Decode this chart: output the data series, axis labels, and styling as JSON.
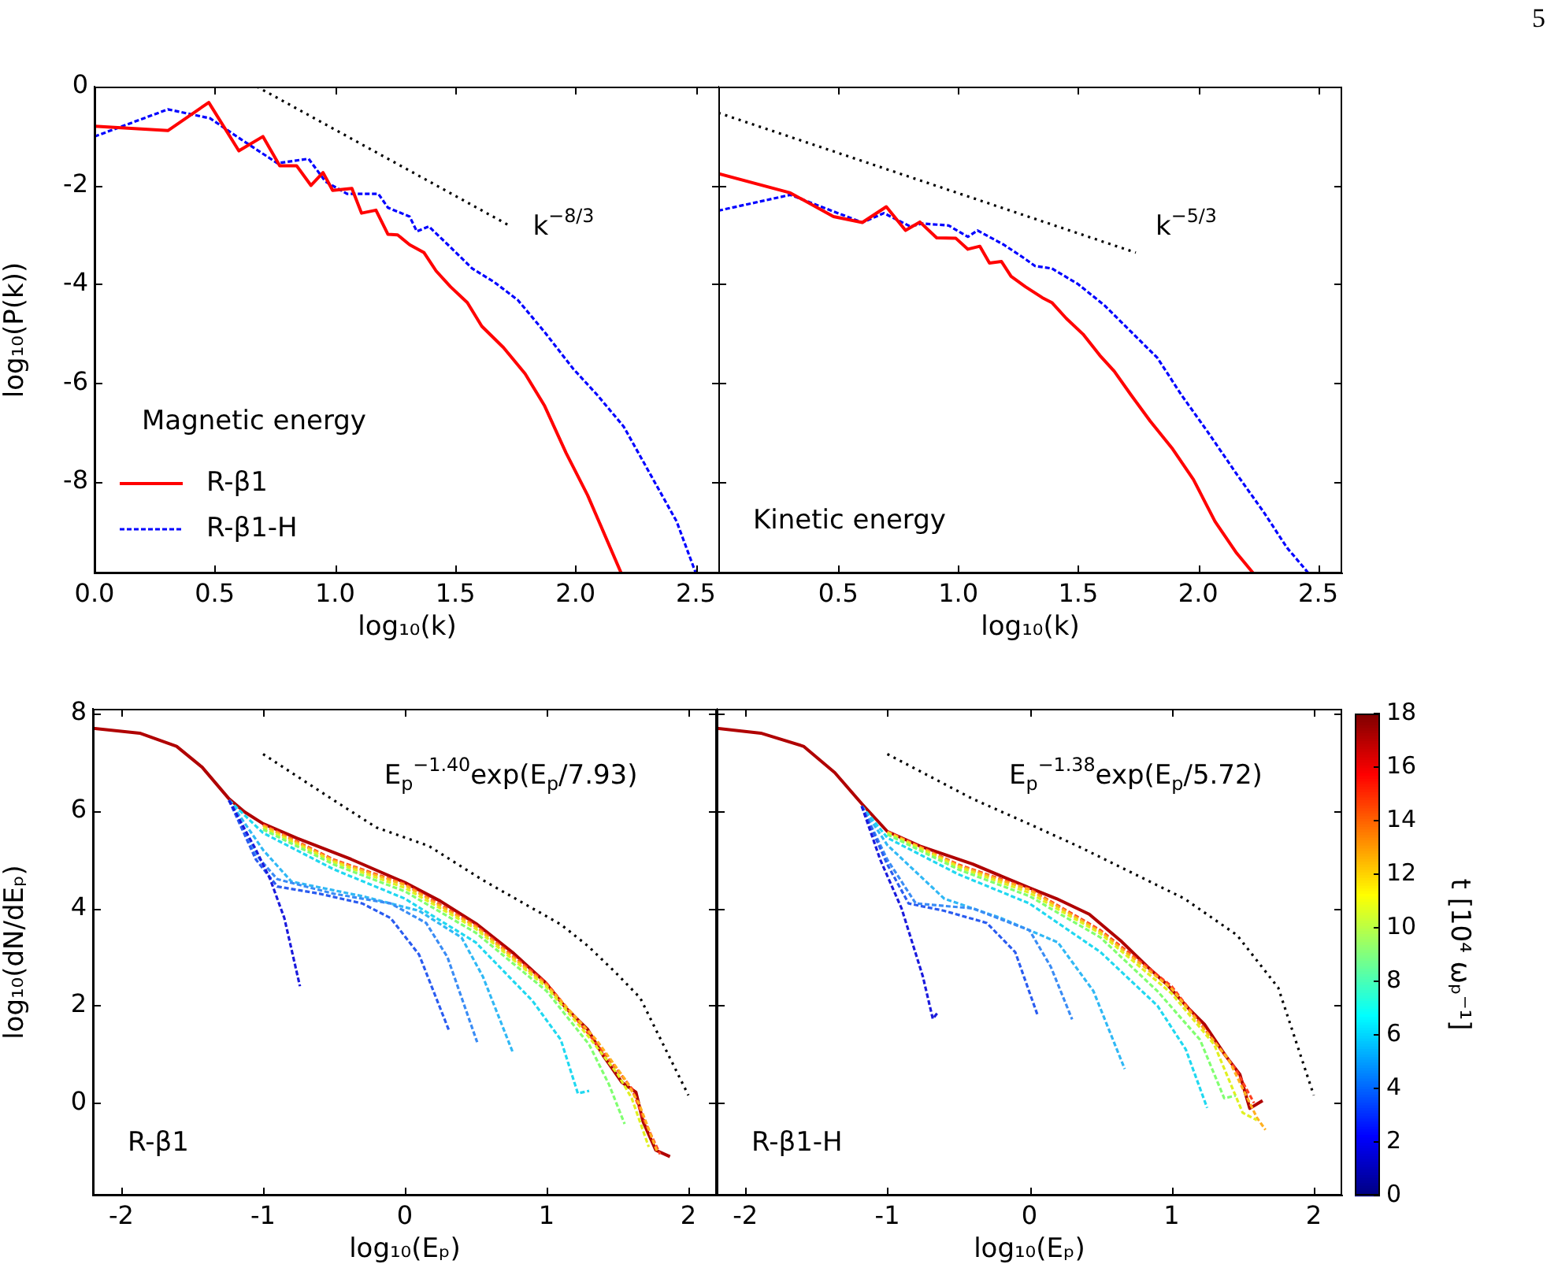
{
  "chart_data": [
    {
      "type": "line",
      "xlabel": "log₁₀(k)",
      "ylabel": "log₁₀(P(k))",
      "xlim": [
        0,
        2.6
      ],
      "ylim": [
        -9.85,
        0
      ],
      "xticks": [
        {
          "value": 0,
          "label": "0.0"
        },
        {
          "value": 0.5,
          "label": "0.5"
        },
        {
          "value": 1,
          "label": "1.0"
        },
        {
          "value": 1.5,
          "label": "1.5"
        },
        {
          "value": 2,
          "label": "2.0"
        },
        {
          "value": 2.5,
          "label": "2.5"
        }
      ],
      "yticks": [
        0,
        -2,
        -4,
        -6,
        -8
      ],
      "grid": false,
      "marker": "none",
      "legend": "bottom left",
      "legend_title": "Magnetic energy",
      "annotations": [
        "k$^{−8/3}$"
      ],
      "series": [
        {
          "name": "R-β1",
          "color": "#ff0000",
          "line_style": "solid",
          "x": [
            0,
            0.305,
            0.475,
            0.6,
            0.7,
            0.77,
            0.84,
            0.9,
            0.95,
            0.99,
            1.07,
            1.11,
            1.17,
            1.22,
            1.26,
            1.31,
            1.37,
            1.42,
            1.48,
            1.55,
            1.61,
            1.7,
            1.79,
            1.87,
            1.96,
            2.05,
            2.19
          ],
          "values": [
            -0.8,
            -0.89,
            -0.32,
            -1.3,
            -1.01,
            -1.6,
            -1.6,
            -2.0,
            -1.74,
            -2.1,
            -2.06,
            -2.56,
            -2.5,
            -2.99,
            -3.0,
            -3.2,
            -3.36,
            -3.73,
            -4.05,
            -4.37,
            -4.85,
            -5.28,
            -5.81,
            -6.45,
            -7.41,
            -8.27,
            -9.85
          ]
        },
        {
          "name": "R-β1-H",
          "color": "#0000ff",
          "line_style": "dashed",
          "x": [
            0,
            0.305,
            0.48,
            0.61,
            0.76,
            0.89,
            0.96,
            1.05,
            1.18,
            1.22,
            1.31,
            1.34,
            1.39,
            1.48,
            1.57,
            1.66,
            1.76,
            1.87,
            1.99,
            2.09,
            2.2,
            2.31,
            2.42,
            2.5
          ],
          "values": [
            -1.01,
            -0.46,
            -0.64,
            -1.07,
            -1.55,
            -1.46,
            -1.92,
            -2.17,
            -2.17,
            -2.45,
            -2.63,
            -2.93,
            -2.83,
            -3.25,
            -3.68,
            -3.95,
            -4.32,
            -4.96,
            -5.71,
            -6.24,
            -6.88,
            -7.84,
            -8.8,
            -9.85
          ]
        },
        {
          "color": "#000000",
          "line_style": "dotted",
          "x": [
            0.675,
            1.72
          ],
          "values": [
            0,
            -2.8
          ]
        }
      ]
    },
    {
      "type": "line",
      "xlabel": "log₁₀(k)",
      "xlim": [
        0,
        2.6
      ],
      "ylim": [
        -9.85,
        0
      ],
      "xticks": [
        {
          "value": 0.5,
          "label": "0.5"
        },
        {
          "value": 1,
          "label": "1.0"
        },
        {
          "value": 1.5,
          "label": "1.5"
        },
        {
          "value": 2,
          "label": "2.0"
        },
        {
          "value": 2.5,
          "label": "2.5"
        }
      ],
      "yticks": [
        0,
        -2,
        -4,
        -6,
        -8
      ],
      "tick_labels": "x",
      "grid": false,
      "marker": "none",
      "annotations": [
        "Kinetic energy",
        "k$^{−5/3}$",
        "5"
      ],
      "series": [
        {
          "color": "#ff0000",
          "line_style": "solid",
          "x": [
            0,
            0.3,
            0.48,
            0.6,
            0.7,
            0.78,
            0.84,
            0.91,
            0.99,
            1.04,
            1.09,
            1.13,
            1.18,
            1.22,
            1.28,
            1.35,
            1.39,
            1.45,
            1.52,
            1.59,
            1.65,
            1.72,
            1.8,
            1.89,
            1.98,
            2.07,
            2.16,
            2.23
          ],
          "values": [
            -1.76,
            -2.15,
            -2.63,
            -2.75,
            -2.43,
            -2.91,
            -2.74,
            -3.06,
            -3.07,
            -3.29,
            -3.23,
            -3.57,
            -3.54,
            -3.84,
            -4.05,
            -4.27,
            -4.37,
            -4.69,
            -5.01,
            -5.44,
            -5.76,
            -6.24,
            -6.77,
            -7.31,
            -7.95,
            -8.8,
            -9.44,
            -9.85
          ]
        },
        {
          "color": "#0000ff",
          "line_style": "dashed",
          "x": [
            0,
            0.3,
            0.6,
            0.69,
            0.8,
            0.85,
            0.96,
            1.04,
            1.08,
            1.19,
            1.28,
            1.32,
            1.39,
            1.5,
            1.61,
            1.72,
            1.83,
            1.93,
            2.04,
            2.16,
            2.27,
            2.37,
            2.46
          ],
          "values": [
            -2.51,
            -2.19,
            -2.75,
            -2.56,
            -2.83,
            -2.77,
            -2.81,
            -3.04,
            -2.91,
            -3.2,
            -3.49,
            -3.63,
            -3.68,
            -4.0,
            -4.43,
            -4.96,
            -5.49,
            -6.24,
            -6.99,
            -7.84,
            -8.59,
            -9.33,
            -9.85
          ]
        },
        {
          "color": "#000000",
          "line_style": "dotted",
          "x": [
            0,
            1.74
          ],
          "values": [
            -0.53,
            -3.36
          ]
        }
      ]
    },
    {
      "type": "line",
      "xlabel": "log₁₀(Eₚ)",
      "ylabel": "log₁₀(dN/dEₚ)",
      "xlim": [
        -2.2,
        2.2
      ],
      "ylim": [
        -1.9,
        8.1
      ],
      "xticks": [
        -2,
        -1,
        0,
        1,
        2
      ],
      "yticks": [
        0,
        2,
        4,
        6,
        8
      ],
      "grid": false,
      "marker": "none",
      "annotations": [
        "R-β1",
        "E$_{p}$$^{−1.40}$exp(E$_{p}$/7.93)"
      ],
      "series": [
        {
          "color": "#1a1adc",
          "line_style": "dashed",
          "x": [
            -1.24,
            -1.05,
            -0.95,
            -0.85,
            -0.74
          ],
          "values": [
            6.22,
            5.2,
            4.6,
            3.8,
            2.4
          ]
        },
        {
          "color": "#2a5cf0",
          "line_style": "dashed",
          "x": [
            -1.24,
            -1.05,
            -0.9,
            -0.6,
            -0.3,
            -0.1,
            0.1,
            0.31
          ],
          "values": [
            6.22,
            5.0,
            4.45,
            4.3,
            4.1,
            3.8,
            3.05,
            1.5
          ]
        },
        {
          "color": "#3a8cf5",
          "line_style": "dashed",
          "x": [
            -1.24,
            -1.05,
            -0.9,
            -0.5,
            -0.1,
            0.15,
            0.3,
            0.51
          ],
          "values": [
            6.22,
            5.1,
            4.6,
            4.3,
            4.1,
            3.7,
            3.0,
            1.25
          ]
        },
        {
          "color": "#30b8f5",
          "line_style": "dashed",
          "x": [
            -1.24,
            -1.0,
            -0.8,
            -0.3,
            0.1,
            0.4,
            0.55,
            0.76
          ],
          "values": [
            6.22,
            5.2,
            4.55,
            4.25,
            3.95,
            3.4,
            2.6,
            1.05
          ]
        },
        {
          "color": "#20d8f0",
          "line_style": "dashed",
          "x": [
            -1.24,
            -1.0,
            -0.5,
            0,
            0.5,
            0.9,
            1.1,
            1.22,
            1.3
          ],
          "values": [
            6.22,
            5.55,
            4.8,
            4.2,
            3.3,
            2.1,
            1.3,
            0.2,
            0.25
          ]
        },
        {
          "color": "#80ff70",
          "line_style": "dashed",
          "x": [
            -1.0,
            -0.5,
            0,
            0.5,
            1.0,
            1.3,
            1.44,
            1.55
          ],
          "values": [
            5.62,
            4.9,
            4.35,
            3.5,
            2.3,
            1.2,
            0.38,
            -0.43
          ]
        },
        {
          "color": "#e0f020",
          "line_style": "dashed",
          "x": [
            -1.0,
            -0.5,
            0,
            0.5,
            1.0,
            1.3,
            1.5,
            1.6,
            1.72
          ],
          "values": [
            5.66,
            4.95,
            4.42,
            3.58,
            2.38,
            1.35,
            0.6,
            0.1,
            -0.9
          ]
        },
        {
          "color": "#ffb020",
          "line_style": "dashed",
          "x": [
            -1.0,
            -0.5,
            0,
            0.5,
            1.0,
            1.35,
            1.55,
            1.65,
            1.78
          ],
          "values": [
            5.7,
            4.98,
            4.48,
            3.62,
            2.42,
            1.3,
            0.5,
            0.0,
            -1.0
          ]
        },
        {
          "color": "#ff4020",
          "line_style": "dashed",
          "x": [
            -1.0,
            -0.5,
            0,
            0.5,
            1.0,
            1.4,
            1.6,
            1.68,
            1.8
          ],
          "values": [
            5.72,
            5.0,
            4.5,
            3.65,
            2.46,
            1.05,
            0.3,
            -0.3,
            -1.05
          ]
        },
        {
          "color": "#b00000",
          "line_style": "solid",
          "x": [
            -2.2,
            -1.87,
            -1.61,
            -1.43,
            -1.24,
            -1.13,
            -1.0,
            -0.76,
            -0.38,
            0,
            0.25,
            0.51,
            0.77,
            0.99,
            1.14,
            1.29,
            1.4,
            1.53,
            1.63,
            1.68,
            1.77,
            1.87
          ],
          "values": [
            7.7,
            7.6,
            7.33,
            6.9,
            6.25,
            5.98,
            5.74,
            5.44,
            5.01,
            4.53,
            4.15,
            3.67,
            3.07,
            2.48,
            1.94,
            1.51,
            0.97,
            0.43,
            0.22,
            -0.38,
            -0.97,
            -1.1
          ]
        },
        {
          "color": "#000000",
          "line_style": "dotted",
          "x": [
            -1.0,
            -0.49,
            -0.2,
            0.17,
            0.55,
            1.1,
            1.29,
            1.48,
            1.66,
            1.77,
            2.0
          ],
          "values": [
            7.17,
            6.2,
            5.66,
            5.28,
            4.58,
            3.67,
            3.23,
            2.7,
            2.16,
            1.51,
            0.16
          ]
        }
      ]
    },
    {
      "type": "line",
      "xlabel": "log₁₀(Eₚ)",
      "xlim": [
        -2.2,
        2.2
      ],
      "ylim": [
        -1.9,
        8.1
      ],
      "xticks": [
        -2,
        -1,
        0,
        1,
        2
      ],
      "yticks": [
        0,
        2,
        4,
        6,
        8
      ],
      "tick_labels": "x",
      "grid": false,
      "marker": "none",
      "clabel": "t [10⁴ ωₚ⁻¹]",
      "clim": [
        0,
        18
      ],
      "cticks": [
        0,
        2,
        4,
        6,
        8,
        10,
        12,
        14,
        16,
        18
      ],
      "annotations": [
        "R-β1-H",
        "E$_{p}$$^{−1.38}$exp(E$_{p}$/5.72)"
      ],
      "series": [
        {
          "color": "#1a1adc",
          "line_style": "dashed",
          "x": [
            -1.18,
            -1.05,
            -0.9,
            -0.75,
            -0.68,
            -0.64
          ],
          "values": [
            6.1,
            5.0,
            4.0,
            2.6,
            1.73,
            1.88
          ]
        },
        {
          "color": "#2a5cf0",
          "line_style": "dashed",
          "x": [
            -1.18,
            -1.0,
            -0.85,
            -0.6,
            -0.3,
            -0.1,
            0.06
          ],
          "values": [
            6.1,
            4.9,
            4.1,
            3.95,
            3.7,
            3.1,
            1.78
          ]
        },
        {
          "color": "#3a8cf5",
          "line_style": "dashed",
          "x": [
            -1.18,
            -1.0,
            -0.8,
            -0.4,
            0,
            0.15,
            0.3
          ],
          "values": [
            6.1,
            5.0,
            4.1,
            4.0,
            3.55,
            2.8,
            1.72
          ]
        },
        {
          "color": "#30b8f5",
          "line_style": "dashed",
          "x": [
            -1.18,
            -1.0,
            -0.6,
            -0.2,
            0.2,
            0.45,
            0.67
          ],
          "values": [
            6.1,
            5.3,
            4.2,
            3.8,
            3.3,
            2.3,
            0.7
          ]
        },
        {
          "color": "#20d8f0",
          "line_style": "dashed",
          "x": [
            -1.18,
            -1.0,
            -0.5,
            0,
            0.5,
            0.9,
            1.1,
            1.25
          ],
          "values": [
            6.1,
            5.45,
            4.7,
            4.1,
            3.1,
            2.0,
            1.1,
            -0.1
          ]
        },
        {
          "color": "#80ff70",
          "line_style": "dashed",
          "x": [
            -1.0,
            -0.5,
            0,
            0.5,
            0.9,
            1.2,
            1.37,
            1.45
          ],
          "values": [
            5.52,
            4.8,
            4.25,
            3.4,
            2.3,
            1.3,
            0.1,
            0.15
          ]
        },
        {
          "color": "#e0f020",
          "line_style": "dashed",
          "x": [
            -1.0,
            -0.5,
            0,
            0.5,
            1.0,
            1.3,
            1.5,
            1.6
          ],
          "values": [
            5.55,
            4.85,
            4.32,
            3.48,
            2.25,
            1.2,
            -0.2,
            -0.35
          ]
        },
        {
          "color": "#ffb020",
          "line_style": "dashed",
          "x": [
            -1.0,
            -0.5,
            0,
            0.5,
            1.0,
            1.4,
            1.6,
            1.66
          ],
          "values": [
            5.57,
            4.88,
            4.38,
            3.52,
            2.35,
            0.9,
            -0.3,
            -0.55
          ]
        },
        {
          "color": "#ff4020",
          "line_style": "dashed",
          "x": [
            -1.0,
            -0.5,
            0,
            0.5,
            1.0,
            1.45,
            1.58
          ],
          "values": [
            5.58,
            4.9,
            4.4,
            3.55,
            2.4,
            0.7,
            0.0
          ]
        },
        {
          "color": "#b00000",
          "line_style": "solid",
          "x": [
            -2.2,
            -1.89,
            -1.59,
            -1.37,
            -1.18,
            -1.0,
            -0.77,
            -0.4,
            0,
            0.19,
            0.42,
            0.64,
            0.83,
            0.97,
            1.12,
            1.23,
            1.38,
            1.48,
            1.55,
            1.64
          ],
          "values": [
            7.7,
            7.6,
            7.33,
            6.79,
            6.15,
            5.58,
            5.28,
            4.91,
            4.42,
            4.2,
            3.88,
            3.34,
            2.8,
            2.43,
            1.94,
            1.62,
            0.97,
            0.59,
            -0.11,
            0.05
          ]
        },
        {
          "color": "#000000",
          "line_style": "dotted",
          "x": [
            -1.0,
            -0.4,
            -0.03,
            0.34,
            1.09,
            1.46,
            1.75,
            2.0
          ],
          "values": [
            7.17,
            6.25,
            5.77,
            5.28,
            4.2,
            3.45,
            2.37,
            0.16
          ]
        }
      ]
    }
  ]
}
